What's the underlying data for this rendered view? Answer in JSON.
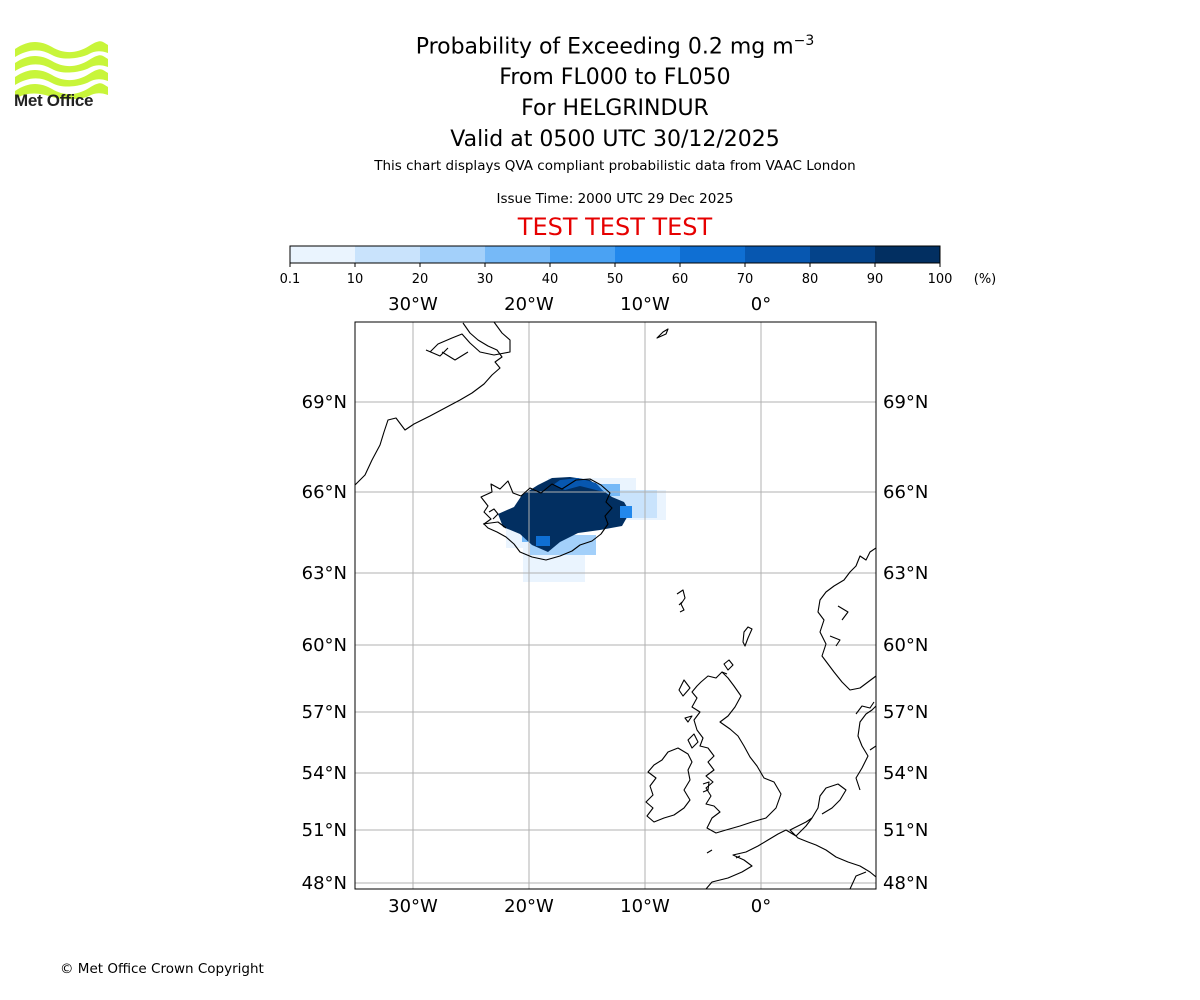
{
  "logo": {
    "text": "Met Office",
    "color": "#c8f53a"
  },
  "title": {
    "line1_prefix": "Probability of Exceeding 0.2 mg m",
    "line1_exp": "−3",
    "line2": "From FL000 to FL050",
    "line3": "For HELGRINDUR",
    "line4": "Valid at 0500 UTC 30/12/2025"
  },
  "info_line": "This chart displays QVA compliant probabilistic data from VAAC London",
  "issue_time": "Issue Time: 2000 UTC 29 Dec 2025",
  "test_banner": "TEST TEST TEST",
  "colorbar": {
    "ticks": [
      "0.1",
      "10",
      "20",
      "30",
      "40",
      "50",
      "60",
      "70",
      "80",
      "90",
      "100"
    ],
    "unit": "(%)",
    "colors": [
      "#eaf4fe",
      "#c9e3fc",
      "#a3d0fa",
      "#76b9f7",
      "#4aa2f3",
      "#2288ec",
      "#0f6fd3",
      "#0757b0",
      "#04438a",
      "#022f61"
    ]
  },
  "map": {
    "lon_range": [
      -35,
      10
    ],
    "lat_range": [
      47.6,
      71.5
    ],
    "lon_ticks": [
      -30,
      -20,
      -10,
      0
    ],
    "lon_labels": [
      "30°W",
      "20°W",
      "10°W",
      "0°"
    ],
    "lat_ticks": [
      48,
      51,
      54,
      57,
      60,
      63,
      66,
      69
    ],
    "lat_labels": [
      "48°N",
      "51°N",
      "54°N",
      "57°N",
      "60°N",
      "63°N",
      "66°N",
      "69°N"
    ],
    "grid": true,
    "ash_probability_max_percent": 100
  },
  "copyright": "© Met Office Crown Copyright"
}
